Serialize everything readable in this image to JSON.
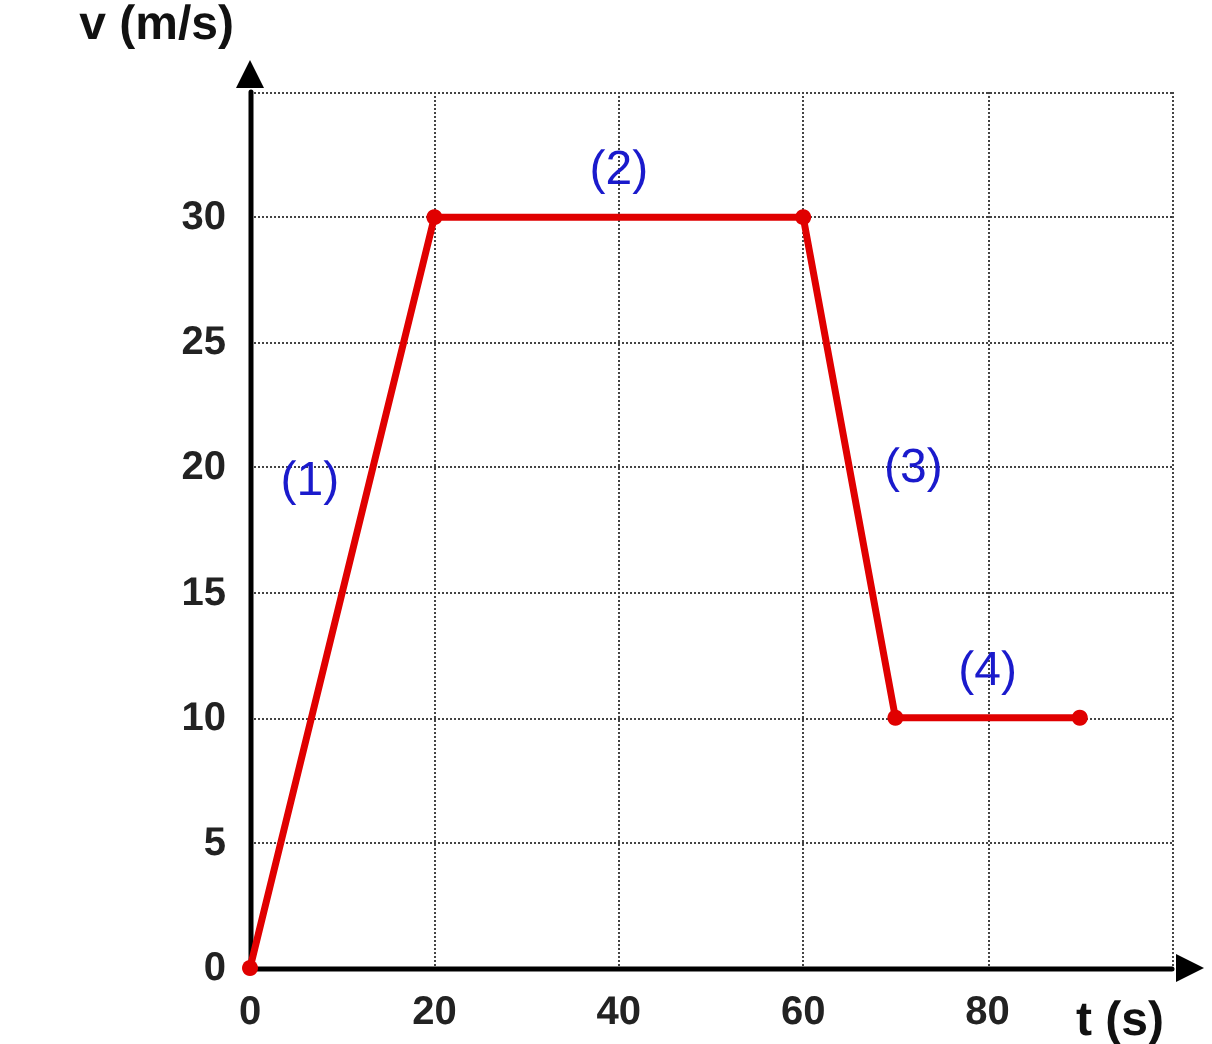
{
  "chart_data": {
    "type": "line",
    "xlabel": "t (s)",
    "ylabel": "v (m/s)",
    "x": [
      0,
      20,
      60,
      70,
      90
    ],
    "series": [
      {
        "color": "#e00000",
        "values": [
          0,
          30,
          30,
          10,
          10
        ]
      }
    ],
    "xlim": [
      0,
      100
    ],
    "xticks": [
      0,
      20,
      40,
      60,
      80,
      {
        "value": 100,
        "label": null
      }
    ],
    "ylim": [
      0,
      35
    ],
    "yticks": [
      0,
      5,
      10,
      15,
      20,
      25,
      30,
      {
        "value": 35,
        "label": null
      }
    ],
    "grid": true,
    "marker": "circle",
    "line_style": "solid",
    "annotations": [
      "(1)",
      "(2)",
      "(3)",
      "(4)"
    ]
  }
}
